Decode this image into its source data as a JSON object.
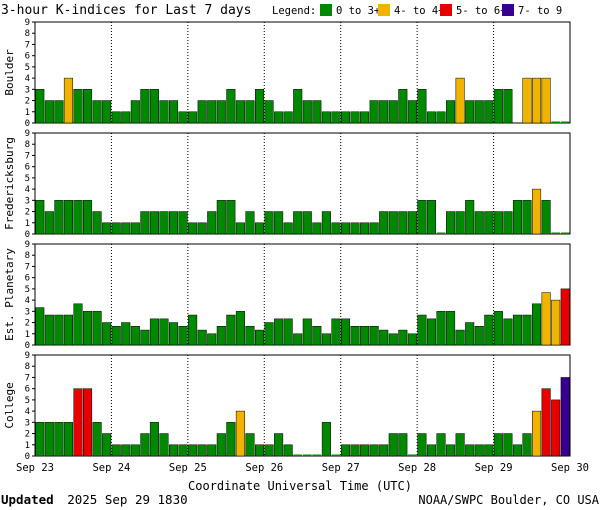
{
  "title": "3-hour K-indices for Last 7 days",
  "legend": {
    "label": "Legend:",
    "items": [
      {
        "label": "0 to 3+",
        "color": "#008800"
      },
      {
        "label": "4- to 4+",
        "color": "#f0b400"
      },
      {
        "label": "5- to 6+",
        "color": "#e80000"
      },
      {
        "label": "7- to 9",
        "color": "#380090"
      }
    ]
  },
  "xlabel": "Coordinate Universal Time (UTC)",
  "footer": {
    "updated_word": "Updated",
    "updated_date": "2025 Sep 29 1830",
    "source": "NOAA/SWPC Boulder, CO USA"
  },
  "chart_data": {
    "type": "bar",
    "x_ticks": [
      "Sep 23",
      "Sep 24",
      "Sep 25",
      "Sep 26",
      "Sep 27",
      "Sep 28",
      "Sep 29",
      "Sep 30"
    ],
    "ylim": [
      0,
      9
    ],
    "y_ticks": [
      0,
      1,
      2,
      3,
      4,
      5,
      6,
      7,
      8,
      9
    ],
    "bins_per_day": 8,
    "days": 7,
    "thresholds": {
      "green_max": 3.67,
      "yellow_max": 4.67,
      "red_max": 6.67
    },
    "colors": {
      "green": "#008800",
      "yellow": "#f0b400",
      "red": "#e80000",
      "purple": "#380090"
    },
    "panels": [
      {
        "name": "Boulder",
        "values": [
          3,
          2,
          2,
          4,
          3,
          3,
          2,
          2,
          1,
          1,
          2,
          3,
          3,
          2,
          2,
          1,
          1,
          2,
          2,
          2,
          3,
          2,
          2,
          3,
          2,
          1,
          1,
          3,
          2,
          2,
          1,
          1,
          1,
          1,
          1,
          2,
          2,
          2,
          3,
          2,
          3,
          1,
          1,
          2,
          4,
          2,
          2,
          2,
          3,
          3,
          null,
          4,
          4,
          4,
          0,
          0
        ]
      },
      {
        "name": "Fredericksburg",
        "values": [
          3,
          2,
          3,
          3,
          3,
          3,
          2,
          1,
          1,
          1,
          1,
          2,
          2,
          2,
          2,
          2,
          1,
          1,
          2,
          3,
          3,
          1,
          2,
          1,
          2,
          2,
          1,
          2,
          2,
          1,
          2,
          1,
          1,
          1,
          1,
          1,
          2,
          2,
          2,
          2,
          3,
          3,
          0,
          2,
          2,
          3,
          2,
          2,
          2,
          2,
          3,
          3,
          4,
          3,
          0,
          0
        ]
      },
      {
        "name": "Est. Planetary",
        "values": [
          3.33,
          2.67,
          2.67,
          2.67,
          3.67,
          3,
          3,
          2,
          1.67,
          2,
          1.67,
          1.33,
          2.33,
          2.33,
          2,
          1.67,
          2.67,
          1.33,
          1,
          1.67,
          2.67,
          3,
          1.67,
          1.33,
          2,
          2.33,
          2.33,
          1,
          2.33,
          1.67,
          1,
          2.33,
          2.33,
          1.67,
          1.67,
          1.67,
          1.33,
          1,
          1.33,
          1,
          2.67,
          2.33,
          3,
          3,
          1.33,
          2,
          1.67,
          2.67,
          3,
          2.33,
          2.67,
          2.67,
          3.67,
          4.67,
          4,
          5
        ]
      },
      {
        "name": "College",
        "values": [
          3,
          3,
          3,
          3,
          6,
          6,
          3,
          2,
          1,
          1,
          1,
          2,
          3,
          2,
          1,
          1,
          1,
          1,
          1,
          2,
          3,
          4,
          2,
          1,
          1,
          2,
          1,
          0,
          0,
          0,
          3,
          0,
          1,
          1,
          1,
          1,
          1,
          2,
          2,
          0,
          2,
          1,
          2,
          1,
          2,
          1,
          1,
          1,
          2,
          2,
          1,
          2,
          4,
          6,
          5,
          7
        ]
      }
    ]
  }
}
